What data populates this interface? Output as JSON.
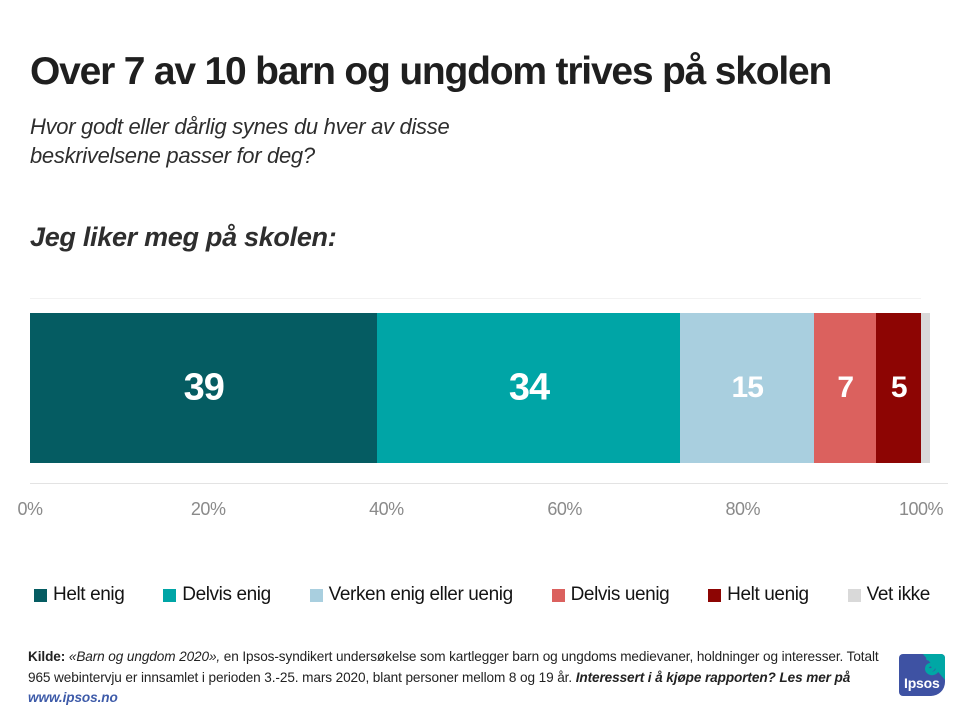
{
  "header": {
    "title": "Over 7 av 10 barn og ungdom trives på skolen",
    "subtitle_line1": "Hvor godt eller dårlig synes du hver av disse",
    "subtitle_line2": "beskrivelsene passer for deg?",
    "question": "Jeg liker meg på skolen:"
  },
  "chart_data": {
    "type": "bar",
    "orientation": "horizontal-stacked",
    "title": "Jeg liker meg på skolen:",
    "xlabel": "",
    "ylabel": "",
    "axis": {
      "min": 0,
      "max": 100,
      "ticks": [
        "0%",
        "20%",
        "40%",
        "60%",
        "80%",
        "100%"
      ]
    },
    "grid": false,
    "legend_position": "bottom",
    "value_label_color": "#ffffff",
    "segments": [
      {
        "label": "Helt enig",
        "value": 39,
        "color": "#055c62",
        "show_value": true
      },
      {
        "label": "Delvis enig",
        "value": 34,
        "color": "#00a5a6",
        "show_value": true
      },
      {
        "label": "Verken enig eller uenig",
        "value": 15,
        "color": "#a9cfdf",
        "show_value": true
      },
      {
        "label": "Delvis uenig",
        "value": 7,
        "color": "#db615e",
        "show_value": true
      },
      {
        "label": "Helt uenig",
        "value": 5,
        "color": "#8d0503",
        "show_value": true
      },
      {
        "label": "Vet ikke",
        "value": 1,
        "color": "#d9d9d9",
        "show_value": false
      }
    ]
  },
  "footer": {
    "kilde_bold": "Kilde:",
    "title_italic": "«Barn og ungdom 2020»,",
    "body": "en Ipsos-syndikert undersøkelse som kartlegger barn og ungdoms medievaner, holdninger og interesser. Totalt 965 webintervju er innsamlet i perioden 3.-25. mars 2020, blant personer mellom 8 og 19 år.",
    "cta": "Interessert i å kjøpe rapporten? Les mer på",
    "link": "www.ipsos.no",
    "link_color": "#3e5ba9"
  },
  "logo": {
    "text": "Ipsos",
    "blue": "#3e52a3",
    "teal": "#00a7a5"
  }
}
